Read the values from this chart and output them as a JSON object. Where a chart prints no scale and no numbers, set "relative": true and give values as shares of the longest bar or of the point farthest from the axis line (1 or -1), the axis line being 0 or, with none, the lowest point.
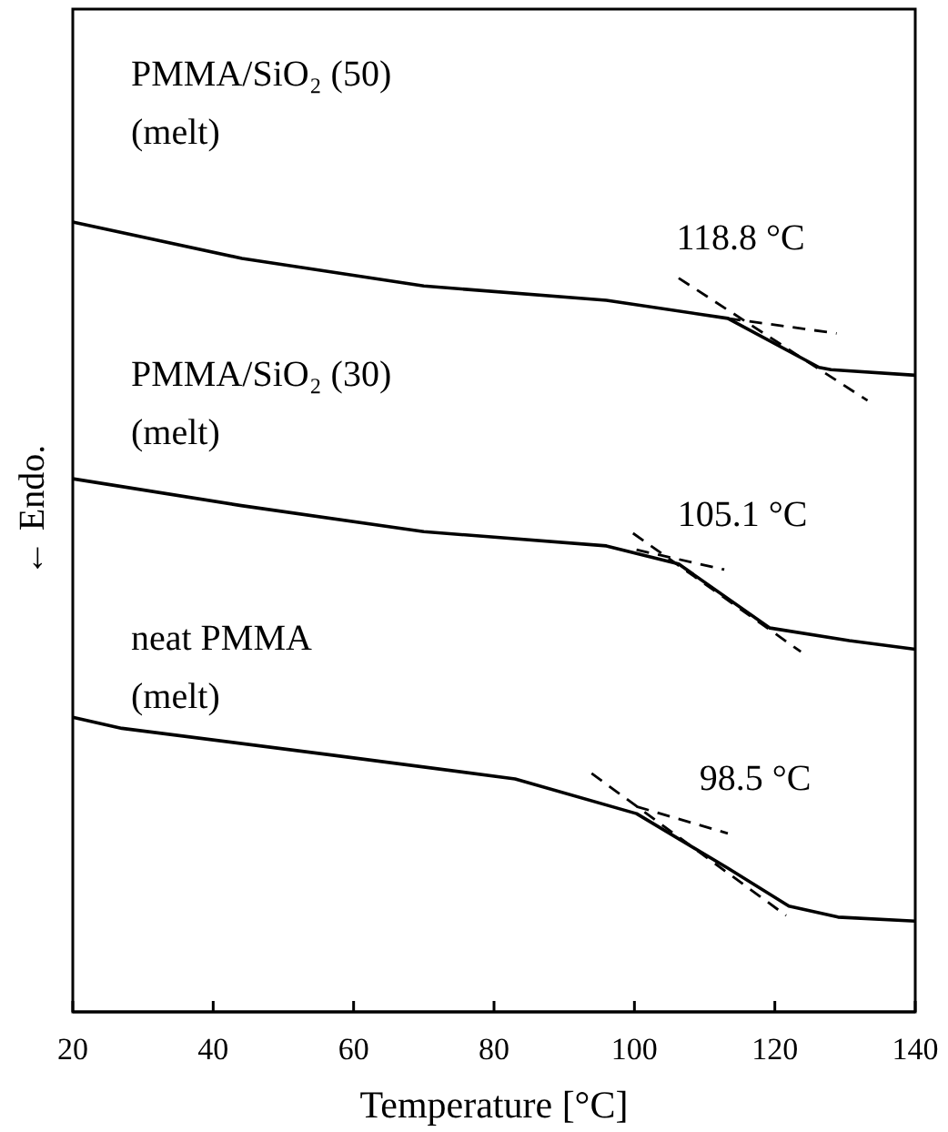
{
  "chart_data": {
    "type": "line",
    "relative": true,
    "xlabel": "Temperature [°C]",
    "ylabel": "← Endo.",
    "xlim": [
      20,
      140
    ],
    "xticks": [
      20,
      40,
      60,
      80,
      100,
      120,
      140
    ],
    "tick_labels": "x",
    "grid": false,
    "annotations": [
      "PMMA/SiO₂ (50)\n(melt)",
      "PMMA/SiO₂ (30)\n(melt)",
      "neat PMMA\n(melt)",
      "118.8 °C",
      "105.1 °C",
      "98.5 °C"
    ],
    "series": [
      {
        "color": "#000000",
        "line_style": "solid",
        "x": [
          20,
          44.1,
          70,
          96,
          113.3,
          126.3,
          128,
          140
        ],
        "values": [
          1.0,
          0.954,
          0.919,
          0.901,
          0.878,
          0.816,
          0.813,
          0.806
        ]
      },
      {
        "color": "#000000",
        "line_style": "solid",
        "x": [
          20,
          44,
          70,
          96,
          106.3,
          119.3,
          130.6,
          140
        ],
        "values": [
          0.675,
          0.641,
          0.608,
          0.59,
          0.567,
          0.486,
          0.47,
          0.459
        ]
      },
      {
        "color": "#000000",
        "line_style": "solid",
        "x": [
          20,
          27,
          57,
          83,
          100.3,
          113.3,
          122,
          129,
          140
        ],
        "values": [
          0.373,
          0.359,
          0.325,
          0.295,
          0.251,
          0.182,
          0.134,
          0.12,
          0.115
        ]
      },
      {
        "color": "#000000",
        "line_style": "dashed",
        "x": [
          106.3,
          133.2
        ],
        "values": [
          0.929,
          0.774
        ]
      },
      {
        "color": "#000000",
        "line_style": "dashed",
        "x": [
          113.3,
          128.8
        ],
        "values": [
          0.878,
          0.859
        ]
      },
      {
        "color": "#000000",
        "line_style": "dashed",
        "x": [
          99.8,
          123.7
        ],
        "values": [
          0.606,
          0.456
        ]
      },
      {
        "color": "#000000",
        "line_style": "dashed",
        "x": [
          100.3,
          112.8
        ],
        "values": [
          0.585,
          0.56
        ]
      },
      {
        "color": "#000000",
        "line_style": "dashed",
        "x": [
          93.9,
          121.6
        ],
        "values": [
          0.302,
          0.122
        ]
      },
      {
        "color": "#000000",
        "line_style": "dashed",
        "x": [
          100.3,
          113.3
        ],
        "values": [
          0.26,
          0.226
        ]
      }
    ]
  }
}
